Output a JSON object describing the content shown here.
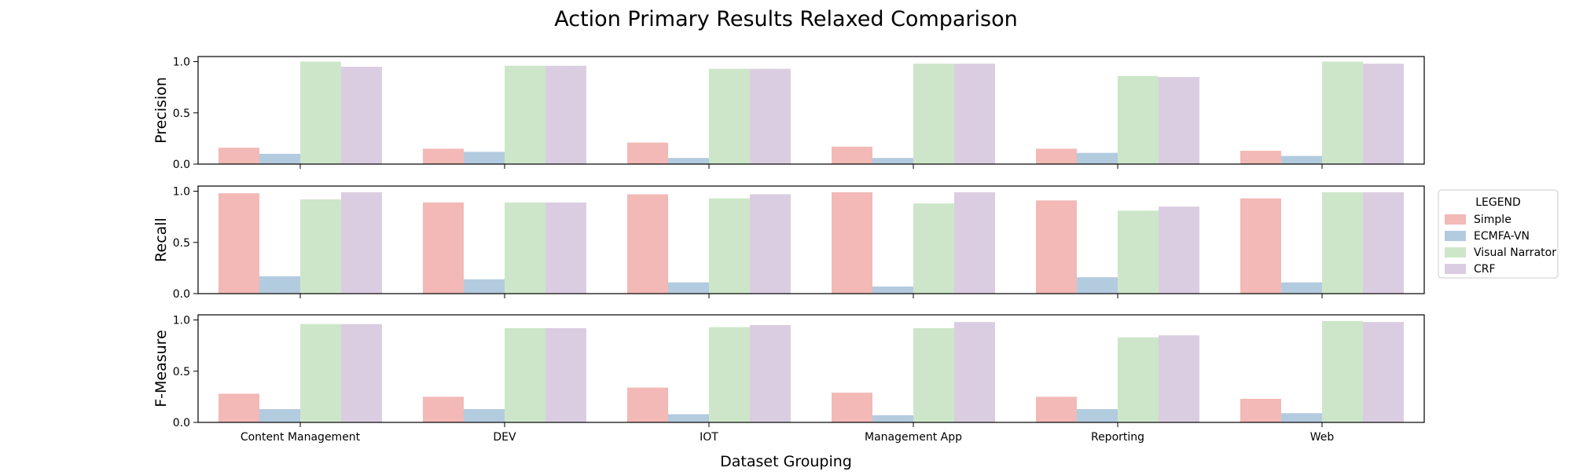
{
  "chart_data": {
    "type": "bar",
    "title": "Action Primary Results Relaxed Comparison",
    "xlabel": "Dataset Grouping",
    "categories": [
      "Content Management",
      "DEV",
      "IOT",
      "Management App",
      "Reporting",
      "Web"
    ],
    "ylim": [
      0,
      1.05
    ],
    "yticks": [
      "0.0",
      "0.5",
      "1.0"
    ],
    "legend": {
      "title": "LEGEND",
      "placement": "right",
      "entries": [
        "Simple",
        "ECMFA-VN",
        "Visual Narrator",
        "CRF"
      ]
    },
    "colors": [
      "#f2b9b6",
      "#b3cbdf",
      "#cde6c9",
      "#dbcde1"
    ],
    "panels": [
      {
        "ylabel": "Precision",
        "series": [
          {
            "name": "Simple",
            "values": [
              0.16,
              0.15,
              0.21,
              0.17,
              0.15,
              0.13
            ]
          },
          {
            "name": "ECMFA-VN",
            "values": [
              0.1,
              0.12,
              0.06,
              0.06,
              0.11,
              0.08
            ]
          },
          {
            "name": "Visual Narrator",
            "values": [
              1.0,
              0.96,
              0.93,
              0.98,
              0.86,
              1.0
            ]
          },
          {
            "name": "CRF",
            "values": [
              0.95,
              0.96,
              0.93,
              0.98,
              0.85,
              0.98
            ]
          }
        ]
      },
      {
        "ylabel": "Recall",
        "series": [
          {
            "name": "Simple",
            "values": [
              0.98,
              0.89,
              0.97,
              0.99,
              0.91,
              0.93
            ]
          },
          {
            "name": "ECMFA-VN",
            "values": [
              0.17,
              0.14,
              0.11,
              0.07,
              0.16,
              0.11
            ]
          },
          {
            "name": "Visual Narrator",
            "values": [
              0.92,
              0.89,
              0.93,
              0.88,
              0.81,
              0.99
            ]
          },
          {
            "name": "CRF",
            "values": [
              0.99,
              0.89,
              0.97,
              0.99,
              0.85,
              0.99
            ]
          }
        ]
      },
      {
        "ylabel": "F-Measure",
        "series": [
          {
            "name": "Simple",
            "values": [
              0.28,
              0.25,
              0.34,
              0.29,
              0.25,
              0.23
            ]
          },
          {
            "name": "ECMFA-VN",
            "values": [
              0.13,
              0.13,
              0.08,
              0.07,
              0.13,
              0.09
            ]
          },
          {
            "name": "Visual Narrator",
            "values": [
              0.96,
              0.92,
              0.93,
              0.92,
              0.83,
              0.99
            ]
          },
          {
            "name": "CRF",
            "values": [
              0.96,
              0.92,
              0.95,
              0.98,
              0.85,
              0.98
            ]
          }
        ]
      }
    ]
  }
}
